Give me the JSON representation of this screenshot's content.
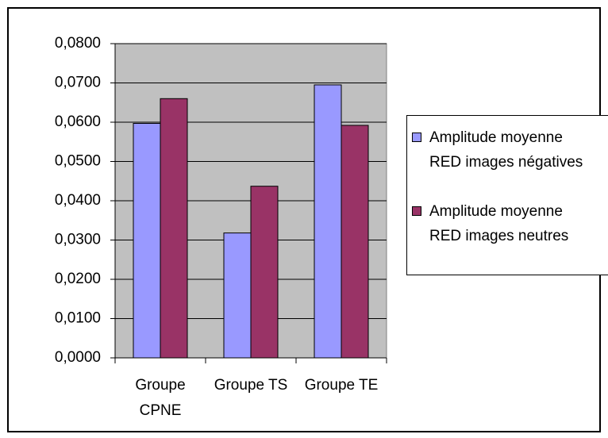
{
  "chart_data": {
    "type": "bar",
    "categories": [
      "Groupe CPNE",
      "Groupe TS",
      "Groupe TE"
    ],
    "series": [
      {
        "name": "Amplitude moyenne RED images négatives",
        "color": "#9999ff",
        "values": [
          0.0597,
          0.0318,
          0.0695
        ]
      },
      {
        "name": "Amplitude moyenne RED images neutres",
        "color": "#993366",
        "values": [
          0.066,
          0.0437,
          0.0592
        ]
      }
    ],
    "ylim": [
      0,
      0.08
    ],
    "yticks": [
      {
        "value": 0,
        "label": "0,0000"
      },
      {
        "value": 0.01,
        "label": "0,0100"
      },
      {
        "value": 0.02,
        "label": "0,0200"
      },
      {
        "value": 0.03,
        "label": "0,0300"
      },
      {
        "value": 0.04,
        "label": "0,0400"
      },
      {
        "value": 0.05,
        "label": "0,0500"
      },
      {
        "value": 0.06,
        "label": "0,0600"
      },
      {
        "value": 0.07,
        "label": "0,0700"
      },
      {
        "value": 0.08,
        "label": "0,0800"
      }
    ],
    "grid": true,
    "plot_background": "#c0c0c0",
    "legend": "right"
  }
}
